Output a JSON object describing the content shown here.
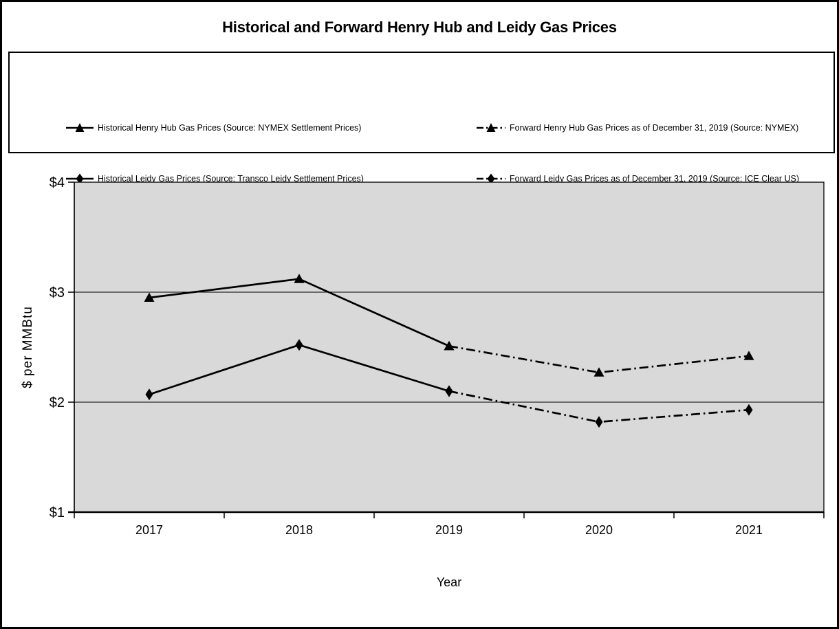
{
  "chart": {
    "title": "Historical and Forward Henry Hub and Leidy Gas Prices",
    "xlabel": "Year",
    "ylabel": "$ per MMBtu"
  },
  "legend": {
    "items": [
      {
        "label": "Historical Henry Hub Gas Prices (Source: NYMEX Settlement Prices)",
        "marker": "triangle-icon",
        "line_style": "solid"
      },
      {
        "label": "Forward Henry Hub Gas Prices as of December 31, 2019 (Source: NYMEX)",
        "marker": "triangle-icon",
        "line_style": "dash-dot"
      },
      {
        "label": "Historical Leidy Gas Prices (Source: Transco Leidy Settlement Prices)",
        "marker": "diamond-icon",
        "line_style": "solid"
      },
      {
        "label": "Forward Leidy Gas Prices as of December 31, 2019 (Source: ICE Clear US)",
        "marker": "diamond-icon",
        "line_style": "dash-dot"
      }
    ]
  },
  "colors": {
    "line": "#000000",
    "plot_background": "#D9D9D9",
    "frame_border": "#000000",
    "text": "#000000"
  },
  "chart_data": {
    "type": "line",
    "title": "Historical and Forward Henry Hub and Leidy Gas Prices",
    "xlabel": "Year",
    "ylabel": "$ per MMBtu",
    "categories": [
      2017,
      2018,
      2019,
      2020,
      2021
    ],
    "ylim": [
      1,
      4
    ],
    "yticks": [
      {
        "value": 1,
        "label": "$1"
      },
      {
        "value": 2,
        "label": "$2"
      },
      {
        "value": 3,
        "label": "$3"
      },
      {
        "value": 4,
        "label": "$4"
      }
    ],
    "grid": "horizontal",
    "legend_position": "top-box",
    "series": [
      {
        "name": "Historical Henry Hub Gas Prices (Source: NYMEX Settlement Prices)",
        "marker": "triangle",
        "line_style": "solid",
        "x": [
          2017,
          2018,
          2019
        ],
        "values": [
          2.95,
          3.12,
          2.51
        ]
      },
      {
        "name": "Forward Henry Hub Gas Prices as of December 31, 2019 (Source: NYMEX)",
        "marker": "triangle",
        "line_style": "dash-dot",
        "x": [
          2019,
          2020,
          2021
        ],
        "values": [
          2.51,
          2.27,
          2.42
        ]
      },
      {
        "name": "Historical Leidy Gas Prices (Source: Transco Leidy Settlement Prices)",
        "marker": "diamond",
        "line_style": "solid",
        "x": [
          2017,
          2018,
          2019
        ],
        "values": [
          2.07,
          2.52,
          2.1
        ]
      },
      {
        "name": "Forward Leidy Gas Prices as of December 31, 2019 (Source: ICE Clear US)",
        "marker": "diamond",
        "line_style": "dash-dot",
        "x": [
          2019,
          2020,
          2021
        ],
        "values": [
          2.1,
          1.82,
          1.93
        ]
      }
    ]
  }
}
